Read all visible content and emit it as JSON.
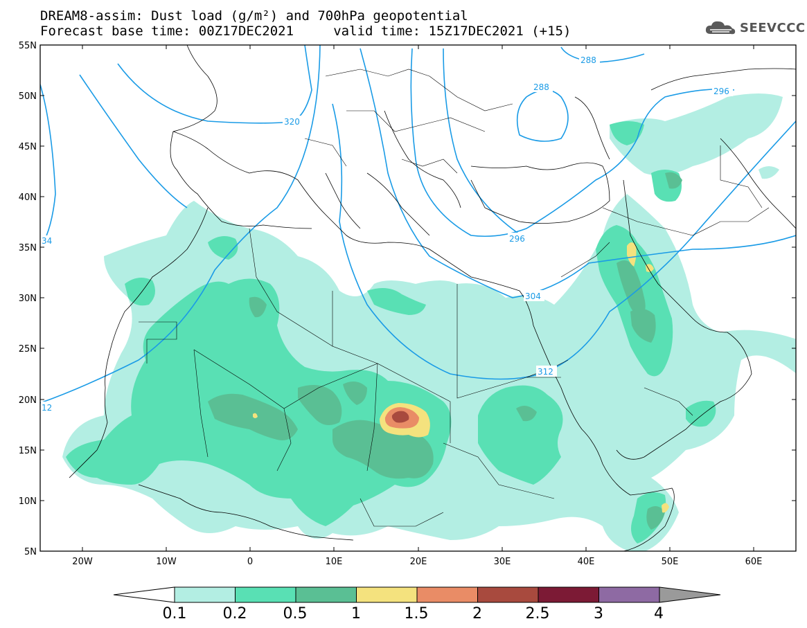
{
  "title_line1": "DREAM8-assim: Dust load (g/m²) and 700hPa geopotential",
  "title_line2": "Forecast base time: 00Z17DEC2021     valid time: 15Z17DEC2021 (+15)",
  "logo": {
    "text": "SEEVCCC",
    "icon": "cloud-icon"
  },
  "map": {
    "lon_range": [
      -25,
      65
    ],
    "lat_range": [
      5,
      55
    ],
    "lat_labels": [
      "55N",
      "50N",
      "45N",
      "40N",
      "35N",
      "30N",
      "25N",
      "20N",
      "15N",
      "10N",
      "5N"
    ],
    "lon_labels": [
      "20W",
      "10W",
      "0",
      "10E",
      "20E",
      "30E",
      "40E",
      "50E",
      "60E"
    ],
    "contour_labels": [
      "288",
      "288",
      "296",
      "320",
      "296",
      "304",
      "312",
      "12",
      "34"
    ]
  },
  "colorbar": {
    "labels": [
      "0.1",
      "0.2",
      "0.5",
      "1",
      "1.5",
      "2",
      "2.5",
      "3",
      "4"
    ],
    "colors": [
      "#ffffff",
      "#b3eee3",
      "#59e0b4",
      "#5abf94",
      "#f4e27e",
      "#e98c66",
      "#a84a3e",
      "#7c1a35",
      "#8e6aa3",
      "#9a9a9a"
    ]
  },
  "colors": {
    "contour": "#1a9be6",
    "level1": "#b3eee3",
    "level2": "#59e0b4",
    "level3": "#5abf94",
    "level4": "#f4e27e",
    "level5": "#e98c66",
    "level6": "#a84a3e"
  }
}
